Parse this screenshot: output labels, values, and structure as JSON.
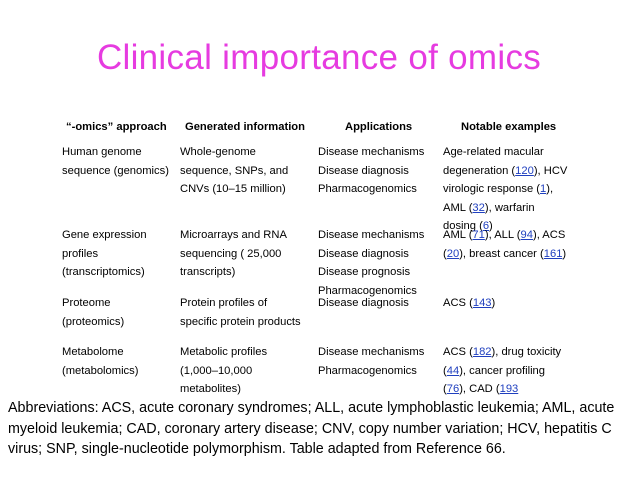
{
  "slide": {
    "title": "Clinical importance of omics"
  },
  "table": {
    "headers": [
      "“-omics” approach",
      "Generated information",
      "Applications",
      "Notable examples"
    ],
    "rows": [
      {
        "approach": [
          "Human genome",
          "sequence (genomics)"
        ],
        "info": [
          "Whole-genome",
          "sequence, SNPs, and",
          "CNVs (10–15 million)"
        ],
        "apps": [
          "Disease mechanisms",
          "Disease diagnosis",
          "Pharmacogenomics"
        ],
        "examples": {
          "l1a": "Age-related macular",
          "l2a": "degeneration (",
          "l2ref": "120",
          "l2b": "), HCV",
          "l3a": "virologic response (",
          "l3ref": "1",
          "l3b": "),",
          "l4a": "AML (",
          "l4ref": "32",
          "l4b": "), warfarin",
          "l5a": "dosing (",
          "l5ref": "6",
          "l5b": ")"
        }
      },
      {
        "approach": [
          "Gene expression",
          "profiles",
          "(transcriptomics)"
        ],
        "info": [
          "Microarrays and RNA",
          "sequencing ( 25,000",
          "transcripts)"
        ],
        "apps": [
          "Disease mechanisms",
          "Disease diagnosis",
          "Disease prognosis",
          "Pharmacogenomics"
        ],
        "examples": {
          "l1a": "AML (",
          "l1ref1": "71",
          "l1b": "), ALL (",
          "l1ref2": "94",
          "l1c": "), ACS",
          "l2a": "(",
          "l2ref1": "20",
          "l2b": "), breast cancer (",
          "l2ref2": "161",
          "l2c": ")"
        }
      },
      {
        "approach": [
          "Proteome",
          "(proteomics)"
        ],
        "info": [
          "Protein profiles of",
          "specific protein products"
        ],
        "apps": [
          "Disease diagnosis"
        ],
        "examples": {
          "l1a": "ACS (",
          "l1ref": "143",
          "l1b": ")"
        }
      },
      {
        "approach": [
          "Metabolome",
          "(metabolomics)"
        ],
        "info": [
          "Metabolic profiles",
          "(1,000–10,000",
          "metabolites)"
        ],
        "apps": [
          "Disease mechanisms",
          "Pharmacogenomics"
        ],
        "examples": {
          "l1a": "ACS (",
          "l1ref": "182",
          "l1b": "), drug toxicity",
          "l2a": "(",
          "l2ref": "44",
          "l2b": "), cancer profiling",
          "l3a": "(",
          "l3ref1": "76",
          "l3b": "), CAD (",
          "l3ref2": "193"
        }
      }
    ]
  },
  "footnote": "Abbreviations: ACS, acute coronary syndromes; ALL, acute lymphoblastic leukemia; AML, acute myeloid leukemia; CAD, coronary artery disease; CNV, copy number variation; HCV, hepatitis C virus; SNP, single-nucleotide polymorphism. Table adapted from Reference 66."
}
